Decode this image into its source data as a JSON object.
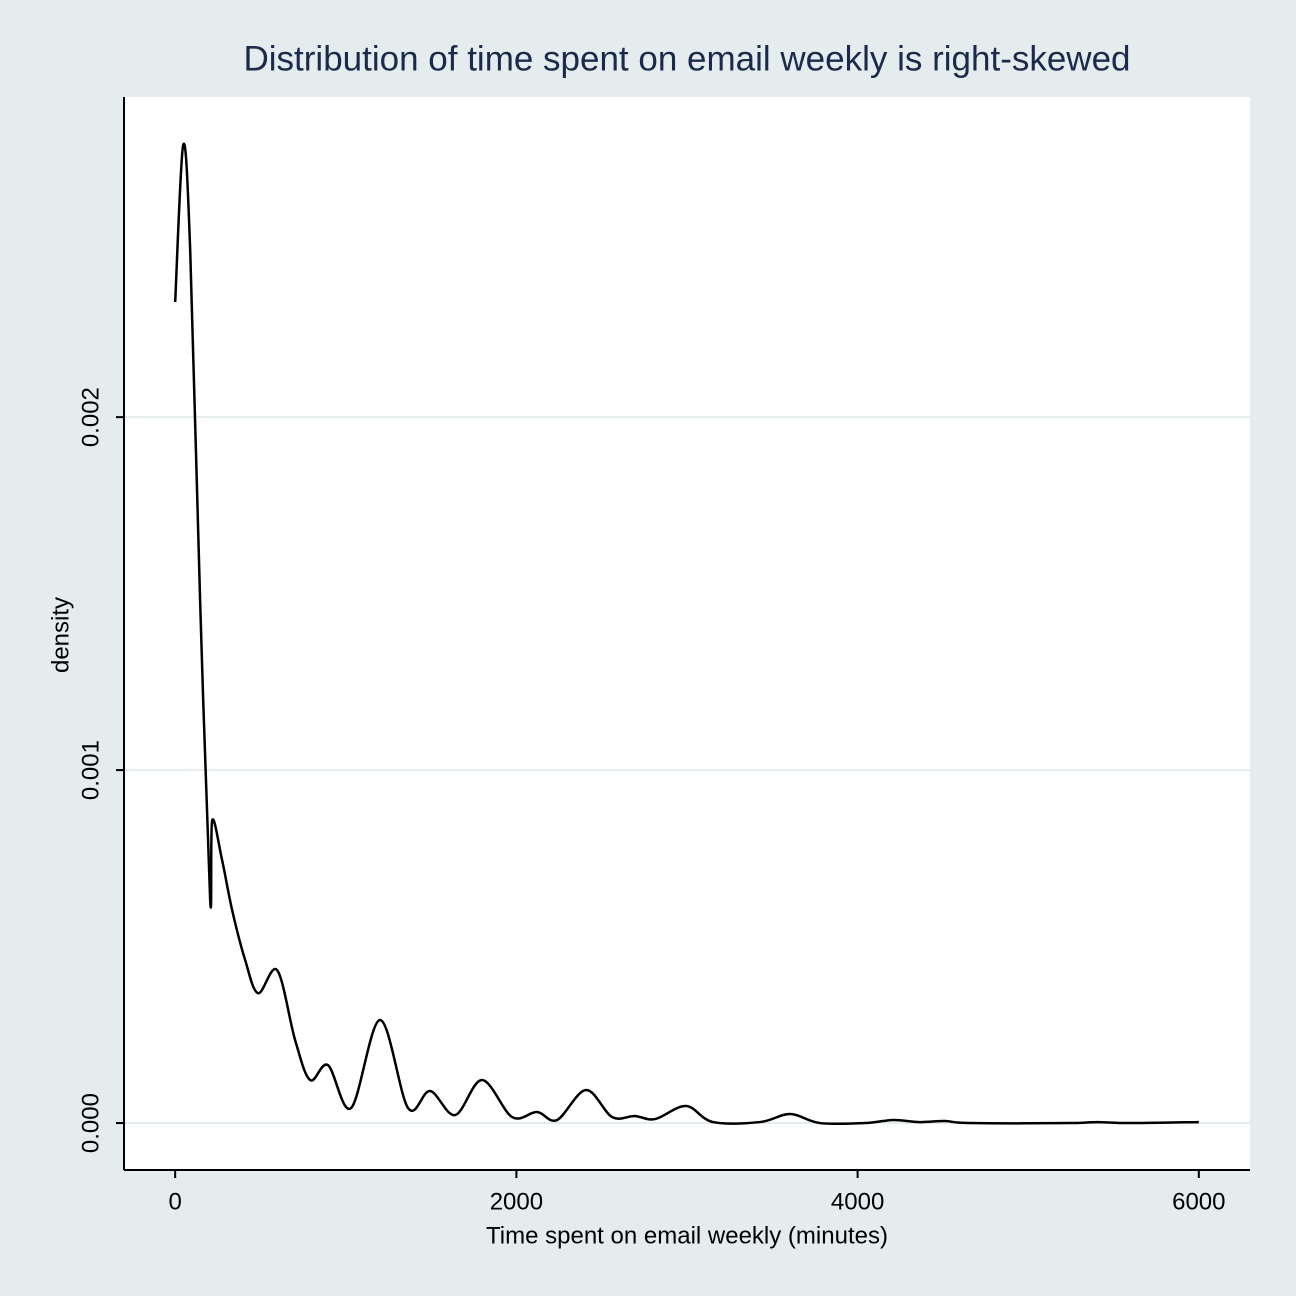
{
  "chart_data": {
    "type": "line",
    "title": "Distribution of time spent on email weekly is right-skewed",
    "x_label": "Time spent on email weekly (minutes)",
    "y_label": "density",
    "x": [
      0,
      47,
      88,
      146,
      205,
      217,
      275,
      334,
      410,
      486,
      598,
      703,
      791,
      896,
      1031,
      1201,
      1365,
      1494,
      1641,
      1799,
      1975,
      2121,
      2238,
      2408,
      2561,
      2695,
      2813,
      2994,
      3152,
      3428,
      3604,
      3779,
      4043,
      4207,
      4365,
      4512,
      4658,
      5244,
      5402,
      5596,
      6000
    ],
    "series": [
      {
        "name": "density",
        "color": "#000000",
        "values": [
          0.002326,
          0.002771,
          0.002473,
          0.001482,
          0.000632,
          0.000858,
          0.000745,
          0.000603,
          0.000462,
          0.000368,
          0.000433,
          0.000235,
          0.000122,
          0.000164,
          4.25e-05,
          0.000292,
          4.25e-05,
          9.07e-05,
          2.27e-05,
          0.000122,
          1.7e-05,
          3.12e-05,
          8.5e-06,
          9.35e-05,
          1.7e-05,
          1.98e-05,
          1.13e-05,
          4.82e-05,
          2.8e-06,
          2.8e-06,
          2.55e-05,
          0,
          0,
          8.5e-06,
          2.8e-06,
          5.7e-06,
          0,
          0,
          2.8e-06,
          0,
          2.8e-06
        ]
      }
    ],
    "xlim": [
      -300,
      6300
    ],
    "xticks": [
      0,
      2000,
      4000,
      6000
    ],
    "ylim": [
      -0.000133,
      0.002907
    ],
    "yticks": [
      {
        "value": 0,
        "label": "0.000"
      },
      0.001,
      0.002
    ],
    "grid": true
  }
}
